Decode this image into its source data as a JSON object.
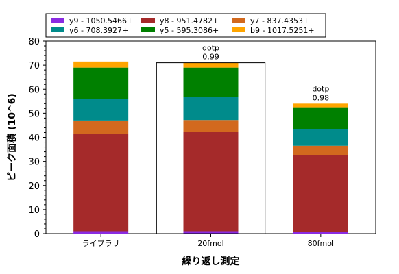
{
  "chart_data": {
    "type": "bar",
    "stacked": true,
    "categories": [
      "ライブラリ",
      "20fmol",
      "80fmol"
    ],
    "series": [
      {
        "name": "y9 - 1050.5466+",
        "color": "#8a2be2",
        "values": [
          1.0,
          1.0,
          0.8
        ]
      },
      {
        "name": "y8 - 951.4782+",
        "color": "#a52a2a",
        "values": [
          40.5,
          41.2,
          31.7
        ]
      },
      {
        "name": "y7 - 837.4353+",
        "color": "#d2691e",
        "values": [
          5.5,
          5.0,
          4.0
        ]
      },
      {
        "name": "y6 - 708.3927+",
        "color": "#008b8b",
        "values": [
          9.0,
          9.5,
          7.0
        ]
      },
      {
        "name": "y5 - 595.3086+",
        "color": "#008000",
        "values": [
          13.0,
          12.3,
          9.0
        ]
      },
      {
        "name": "b9 - 1017.5251+",
        "color": "#ffa500",
        "values": [
          2.5,
          2.0,
          1.5
        ]
      }
    ],
    "annotations": [
      {
        "category": "20fmol",
        "label": "dotp",
        "value": "0.99",
        "boxed": true
      },
      {
        "category": "80fmol",
        "label": "dotp",
        "value": "0.98",
        "boxed": false
      }
    ],
    "xlabel": "繰り返し測定",
    "ylabel": "ピーク面積 (10^6)",
    "ylim": [
      0,
      80
    ],
    "yticks": [
      "0",
      "10",
      "20",
      "30",
      "40",
      "50",
      "60",
      "70",
      "80"
    ],
    "legend": "top",
    "grid": false
  }
}
